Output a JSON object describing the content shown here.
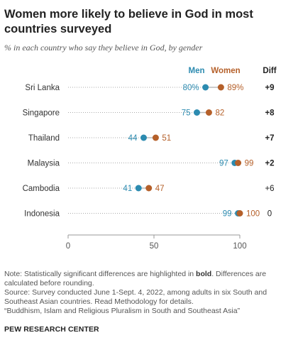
{
  "title": "Women more likely to believe in God in most countries surveyed",
  "subtitle": "% in each country who say they believe in God, by gender",
  "notes": {
    "note_prefix": "Note: Statistically significant differences are highlighted in ",
    "note_bold": "bold",
    "note_suffix": ". Differences are calculated before rounding.",
    "source": "Source: Survey conducted June 1-Sept. 4, 2022, among adults in six South and Southeast Asian countries. Read Methodology for details.",
    "report": "“Buddhism, Islam and Religious Pluralism in South and Southeast Asia”"
  },
  "logo": "PEW RESEARCH CENTER",
  "colors": {
    "men": "#2c8bb0",
    "women": "#b5602a",
    "text": "#333333",
    "axis": "#999999"
  },
  "chart_data": {
    "type": "scatter",
    "title": "Women more likely to believe in God in most countries surveyed",
    "categories": [
      "Sri Lanka",
      "Singapore",
      "Thailand",
      "Malaysia",
      "Cambodia",
      "Indonesia"
    ],
    "series": [
      {
        "name": "Men",
        "values": [
          80,
          75,
          44,
          97,
          41,
          99
        ],
        "labels": [
          "80%",
          "75",
          "44",
          "97",
          "41",
          "99"
        ]
      },
      {
        "name": "Women",
        "values": [
          89,
          82,
          51,
          99,
          47,
          100
        ],
        "labels": [
          "89%",
          "82",
          "51",
          "99",
          "47",
          "100"
        ]
      }
    ],
    "diff_header": "Diff",
    "diff": [
      {
        "label": "+9",
        "significant": true
      },
      {
        "label": "+8",
        "significant": true
      },
      {
        "label": "+7",
        "significant": true
      },
      {
        "label": "+2",
        "significant": true
      },
      {
        "label": "+6",
        "significant": false
      },
      {
        "label": "0",
        "significant": false
      }
    ],
    "xlim": [
      0,
      100
    ],
    "xticks": [
      0,
      50,
      100
    ],
    "xlabel": "",
    "ylabel": "",
    "legend": "top, above dots",
    "grid": false
  }
}
